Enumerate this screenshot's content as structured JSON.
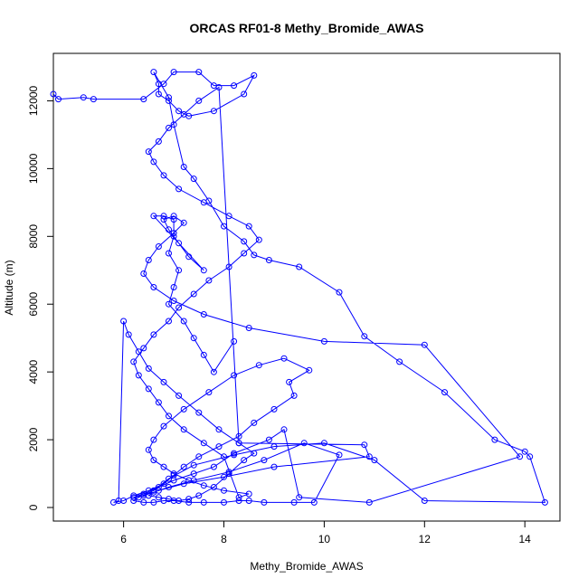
{
  "chart_data": {
    "type": "line",
    "title": "ORCAS RF01-8 Methy_Bromide_AWAS",
    "xlabel": "Methy_Bromide_AWAS",
    "ylabel": "Altitude (m)",
    "xlim": [
      4.6,
      14.7
    ],
    "ylim": [
      -400,
      13400
    ],
    "xticks": [
      "6",
      "8",
      "10",
      "12",
      "14"
    ],
    "yticks": [
      "0",
      "2000",
      "4000",
      "6000",
      "8000",
      "10000",
      "12000"
    ],
    "grid": false,
    "legend": "none",
    "series_color": "#0000ff",
    "x": [
      4.6,
      4.7,
      5.2,
      5.4,
      6.4,
      6.8,
      7.0,
      7.5,
      7.8,
      8.2,
      8.6,
      8.4,
      7.8,
      7.3,
      7.1,
      6.9,
      6.7,
      6.7,
      6.6,
      6.9,
      7.0,
      7.2,
      7.4,
      7.7,
      8.0,
      8.4,
      8.6,
      8.9,
      9.5,
      10.3,
      10.8,
      11.5,
      12.4,
      13.4,
      14.0,
      14.1,
      14.4,
      12.0,
      11.0,
      10.0,
      9.0,
      8.2,
      7.4,
      6.9,
      6.6,
      6.3,
      6.2,
      6.4,
      6.6,
      6.8,
      7.0,
      7.3,
      7.6,
      8.0,
      8.3,
      8.5,
      8.8,
      9.4,
      9.8,
      10.3,
      9.6,
      8.8,
      8.1,
      7.4,
      6.9,
      6.6,
      6.5,
      6.7,
      6.9,
      7.1,
      7.3,
      7.5,
      7.8,
      8.1,
      8.4,
      8.6,
      8.3,
      7.9,
      7.5,
      7.1,
      6.8,
      6.5,
      6.3,
      6.1,
      6.0,
      5.9,
      5.8,
      6.0,
      6.2,
      6.5,
      6.8,
      7.0,
      7.2,
      7.5,
      7.9,
      8.3,
      8.6,
      9.0,
      9.4,
      9.3,
      9.7,
      9.2,
      8.7,
      8.2,
      7.7,
      7.2,
      6.8,
      6.6,
      6.5,
      6.6,
      6.8,
      7.0,
      7.3,
      7.6,
      8.0,
      8.5,
      8.3,
      8.0,
      7.6,
      7.2,
      6.9,
      6.7,
      6.5,
      6.3,
      6.2,
      6.4,
      6.6,
      6.9,
      7.1,
      7.4,
      7.7,
      8.1,
      8.4,
      8.7,
      8.5,
      8.1,
      7.6,
      7.1,
      6.8,
      6.6,
      6.5,
      6.7,
      6.9,
      7.2,
      7.5,
      7.9,
      8.3,
      10.8,
      10.9,
      9.0,
      8.0,
      7.2,
      6.7,
      6.4,
      6.2,
      6.4,
      6.7,
      7.0,
      7.4,
      7.8,
      8.2,
      8.9,
      9.2,
      9.5,
      10.9,
      13.9,
      12.0,
      10.0,
      8.5,
      7.6,
      7.0,
      6.6,
      6.4,
      6.5,
      6.7,
      7.0,
      7.2,
      7.0,
      6.8,
      6.9,
      7.1,
      7.3,
      7.6,
      6.6,
      6.8,
      7.0,
      7.0,
      6.9,
      7.1,
      7.0,
      6.9,
      7.2,
      7.4,
      7.6,
      7.8,
      8.2
    ],
    "y": [
      12200,
      12050,
      12100,
      12050,
      12050,
      12500,
      12850,
      12850,
      12450,
      12450,
      12750,
      12200,
      11700,
      11550,
      11700,
      12000,
      12200,
      12500,
      12850,
      12100,
      11300,
      10050,
      9700,
      9050,
      8300,
      7850,
      7450,
      7300,
      7100,
      6350,
      5050,
      4300,
      3400,
      2000,
      1650,
      1500,
      150,
      200,
      1400,
      1900,
      1800,
      1550,
      1250,
      850,
      500,
      300,
      200,
      150,
      150,
      200,
      200,
      150,
      150,
      150,
      200,
      200,
      150,
      150,
      150,
      1550,
      1900,
      1400,
      1050,
      800,
      600,
      450,
      350,
      300,
      250,
      200,
      250,
      350,
      600,
      1000,
      1400,
      1600,
      1900,
      2300,
      2800,
      3300,
      3700,
      4100,
      4600,
      5100,
      5500,
      200,
      150,
      200,
      350,
      500,
      700,
      950,
      1200,
      1500,
      1800,
      2100,
      2500,
      2900,
      3300,
      3700,
      4050,
      4400,
      4200,
      3900,
      3400,
      2900,
      2400,
      2000,
      1700,
      1400,
      1200,
      1000,
      800,
      650,
      500,
      400,
      300,
      1500,
      1900,
      2300,
      2700,
      3100,
      3500,
      3900,
      4300,
      4700,
      5100,
      5500,
      5900,
      6300,
      6700,
      7100,
      7500,
      7900,
      8300,
      8600,
      9000,
      9400,
      9800,
      10200,
      10500,
      10800,
      11200,
      11600,
      12000,
      12400,
      1900,
      1850,
      1500,
      1200,
      900,
      700,
      500,
      350,
      300,
      400,
      600,
      800,
      1000,
      1200,
      1600,
      2000,
      2300,
      300,
      150,
      1500,
      4800,
      4900,
      5300,
      5700,
      6100,
      6500,
      6900,
      7300,
      7700,
      8100,
      8400,
      8600,
      8500,
      8200,
      7800,
      7400,
      7000,
      8600,
      8600,
      8500,
      8000,
      7500,
      7000,
      6500,
      6000,
      5500,
      5000,
      4500,
      4000,
      4900
    ]
  }
}
